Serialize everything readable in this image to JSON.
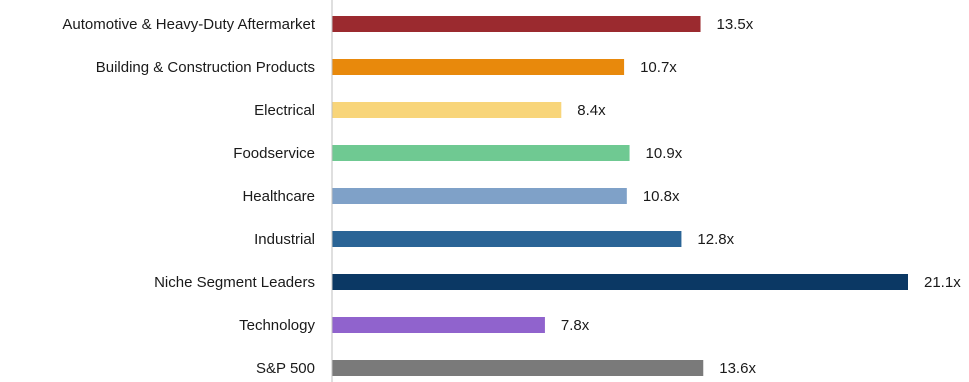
{
  "chart_data": {
    "type": "bar",
    "orientation": "horizontal",
    "title": "",
    "xlabel": "",
    "ylabel": "",
    "categories": [
      "Automotive & Heavy-Duty Aftermarket",
      "Building & Construction Products",
      "Electrical",
      "Foodservice",
      "Healthcare",
      "Industrial",
      "Niche Segment Leaders",
      "Technology",
      "S&P 500"
    ],
    "values": [
      13.5,
      10.7,
      8.4,
      10.9,
      10.8,
      12.8,
      21.1,
      7.8,
      13.6
    ],
    "value_labels": [
      "13.5x",
      "10.7x",
      "8.4x",
      "10.9x",
      "10.8x",
      "12.8x",
      "21.1x",
      "7.8x",
      "13.6x"
    ],
    "colors": [
      "#9b2a2f",
      "#e8890c",
      "#f8d57a",
      "#6fc992",
      "#7fa1c8",
      "#2a6496",
      "#0b3864",
      "#9063cd",
      "#7a7a7a"
    ],
    "xlim": [
      0,
      21.1
    ],
    "grid": false,
    "legend": "none",
    "axis_line_color": "#bfbfbf"
  }
}
